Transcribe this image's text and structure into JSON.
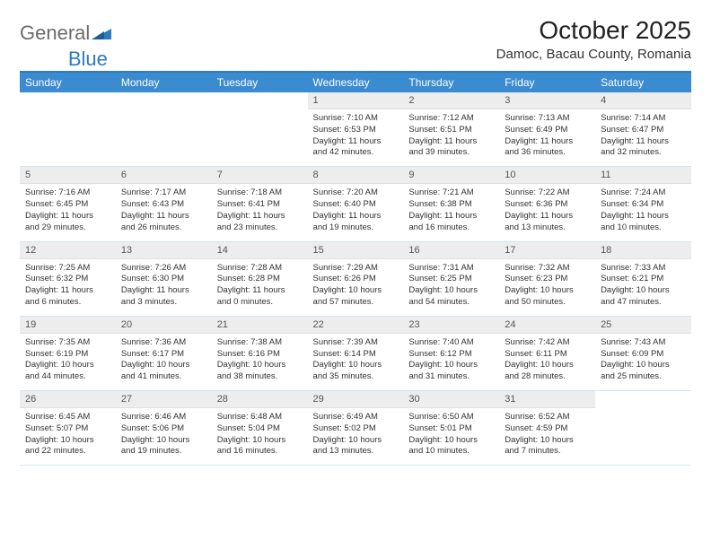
{
  "logo": {
    "text1": "General",
    "text2": "Blue"
  },
  "header": {
    "month_title": "October 2025",
    "location": "Damoc, Bacau County, Romania"
  },
  "colors": {
    "header_blue": "#3b8bd0",
    "border_blue": "#2e7bbf",
    "daynum_bg": "#ededed",
    "text": "#333333"
  },
  "weekdays": [
    "Sunday",
    "Monday",
    "Tuesday",
    "Wednesday",
    "Thursday",
    "Friday",
    "Saturday"
  ],
  "weeks": [
    [
      {
        "empty": true
      },
      {
        "empty": true
      },
      {
        "empty": true
      },
      {
        "day": "1",
        "sunrise": "Sunrise: 7:10 AM",
        "sunset": "Sunset: 6:53 PM",
        "daylight1": "Daylight: 11 hours",
        "daylight2": "and 42 minutes."
      },
      {
        "day": "2",
        "sunrise": "Sunrise: 7:12 AM",
        "sunset": "Sunset: 6:51 PM",
        "daylight1": "Daylight: 11 hours",
        "daylight2": "and 39 minutes."
      },
      {
        "day": "3",
        "sunrise": "Sunrise: 7:13 AM",
        "sunset": "Sunset: 6:49 PM",
        "daylight1": "Daylight: 11 hours",
        "daylight2": "and 36 minutes."
      },
      {
        "day": "4",
        "sunrise": "Sunrise: 7:14 AM",
        "sunset": "Sunset: 6:47 PM",
        "daylight1": "Daylight: 11 hours",
        "daylight2": "and 32 minutes."
      }
    ],
    [
      {
        "day": "5",
        "sunrise": "Sunrise: 7:16 AM",
        "sunset": "Sunset: 6:45 PM",
        "daylight1": "Daylight: 11 hours",
        "daylight2": "and 29 minutes."
      },
      {
        "day": "6",
        "sunrise": "Sunrise: 7:17 AM",
        "sunset": "Sunset: 6:43 PM",
        "daylight1": "Daylight: 11 hours",
        "daylight2": "and 26 minutes."
      },
      {
        "day": "7",
        "sunrise": "Sunrise: 7:18 AM",
        "sunset": "Sunset: 6:41 PM",
        "daylight1": "Daylight: 11 hours",
        "daylight2": "and 23 minutes."
      },
      {
        "day": "8",
        "sunrise": "Sunrise: 7:20 AM",
        "sunset": "Sunset: 6:40 PM",
        "daylight1": "Daylight: 11 hours",
        "daylight2": "and 19 minutes."
      },
      {
        "day": "9",
        "sunrise": "Sunrise: 7:21 AM",
        "sunset": "Sunset: 6:38 PM",
        "daylight1": "Daylight: 11 hours",
        "daylight2": "and 16 minutes."
      },
      {
        "day": "10",
        "sunrise": "Sunrise: 7:22 AM",
        "sunset": "Sunset: 6:36 PM",
        "daylight1": "Daylight: 11 hours",
        "daylight2": "and 13 minutes."
      },
      {
        "day": "11",
        "sunrise": "Sunrise: 7:24 AM",
        "sunset": "Sunset: 6:34 PM",
        "daylight1": "Daylight: 11 hours",
        "daylight2": "and 10 minutes."
      }
    ],
    [
      {
        "day": "12",
        "sunrise": "Sunrise: 7:25 AM",
        "sunset": "Sunset: 6:32 PM",
        "daylight1": "Daylight: 11 hours",
        "daylight2": "and 6 minutes."
      },
      {
        "day": "13",
        "sunrise": "Sunrise: 7:26 AM",
        "sunset": "Sunset: 6:30 PM",
        "daylight1": "Daylight: 11 hours",
        "daylight2": "and 3 minutes."
      },
      {
        "day": "14",
        "sunrise": "Sunrise: 7:28 AM",
        "sunset": "Sunset: 6:28 PM",
        "daylight1": "Daylight: 11 hours",
        "daylight2": "and 0 minutes."
      },
      {
        "day": "15",
        "sunrise": "Sunrise: 7:29 AM",
        "sunset": "Sunset: 6:26 PM",
        "daylight1": "Daylight: 10 hours",
        "daylight2": "and 57 minutes."
      },
      {
        "day": "16",
        "sunrise": "Sunrise: 7:31 AM",
        "sunset": "Sunset: 6:25 PM",
        "daylight1": "Daylight: 10 hours",
        "daylight2": "and 54 minutes."
      },
      {
        "day": "17",
        "sunrise": "Sunrise: 7:32 AM",
        "sunset": "Sunset: 6:23 PM",
        "daylight1": "Daylight: 10 hours",
        "daylight2": "and 50 minutes."
      },
      {
        "day": "18",
        "sunrise": "Sunrise: 7:33 AM",
        "sunset": "Sunset: 6:21 PM",
        "daylight1": "Daylight: 10 hours",
        "daylight2": "and 47 minutes."
      }
    ],
    [
      {
        "day": "19",
        "sunrise": "Sunrise: 7:35 AM",
        "sunset": "Sunset: 6:19 PM",
        "daylight1": "Daylight: 10 hours",
        "daylight2": "and 44 minutes."
      },
      {
        "day": "20",
        "sunrise": "Sunrise: 7:36 AM",
        "sunset": "Sunset: 6:17 PM",
        "daylight1": "Daylight: 10 hours",
        "daylight2": "and 41 minutes."
      },
      {
        "day": "21",
        "sunrise": "Sunrise: 7:38 AM",
        "sunset": "Sunset: 6:16 PM",
        "daylight1": "Daylight: 10 hours",
        "daylight2": "and 38 minutes."
      },
      {
        "day": "22",
        "sunrise": "Sunrise: 7:39 AM",
        "sunset": "Sunset: 6:14 PM",
        "daylight1": "Daylight: 10 hours",
        "daylight2": "and 35 minutes."
      },
      {
        "day": "23",
        "sunrise": "Sunrise: 7:40 AM",
        "sunset": "Sunset: 6:12 PM",
        "daylight1": "Daylight: 10 hours",
        "daylight2": "and 31 minutes."
      },
      {
        "day": "24",
        "sunrise": "Sunrise: 7:42 AM",
        "sunset": "Sunset: 6:11 PM",
        "daylight1": "Daylight: 10 hours",
        "daylight2": "and 28 minutes."
      },
      {
        "day": "25",
        "sunrise": "Sunrise: 7:43 AM",
        "sunset": "Sunset: 6:09 PM",
        "daylight1": "Daylight: 10 hours",
        "daylight2": "and 25 minutes."
      }
    ],
    [
      {
        "day": "26",
        "sunrise": "Sunrise: 6:45 AM",
        "sunset": "Sunset: 5:07 PM",
        "daylight1": "Daylight: 10 hours",
        "daylight2": "and 22 minutes."
      },
      {
        "day": "27",
        "sunrise": "Sunrise: 6:46 AM",
        "sunset": "Sunset: 5:06 PM",
        "daylight1": "Daylight: 10 hours",
        "daylight2": "and 19 minutes."
      },
      {
        "day": "28",
        "sunrise": "Sunrise: 6:48 AM",
        "sunset": "Sunset: 5:04 PM",
        "daylight1": "Daylight: 10 hours",
        "daylight2": "and 16 minutes."
      },
      {
        "day": "29",
        "sunrise": "Sunrise: 6:49 AM",
        "sunset": "Sunset: 5:02 PM",
        "daylight1": "Daylight: 10 hours",
        "daylight2": "and 13 minutes."
      },
      {
        "day": "30",
        "sunrise": "Sunrise: 6:50 AM",
        "sunset": "Sunset: 5:01 PM",
        "daylight1": "Daylight: 10 hours",
        "daylight2": "and 10 minutes."
      },
      {
        "day": "31",
        "sunrise": "Sunrise: 6:52 AM",
        "sunset": "Sunset: 4:59 PM",
        "daylight1": "Daylight: 10 hours",
        "daylight2": "and 7 minutes."
      },
      {
        "empty": true
      }
    ]
  ]
}
